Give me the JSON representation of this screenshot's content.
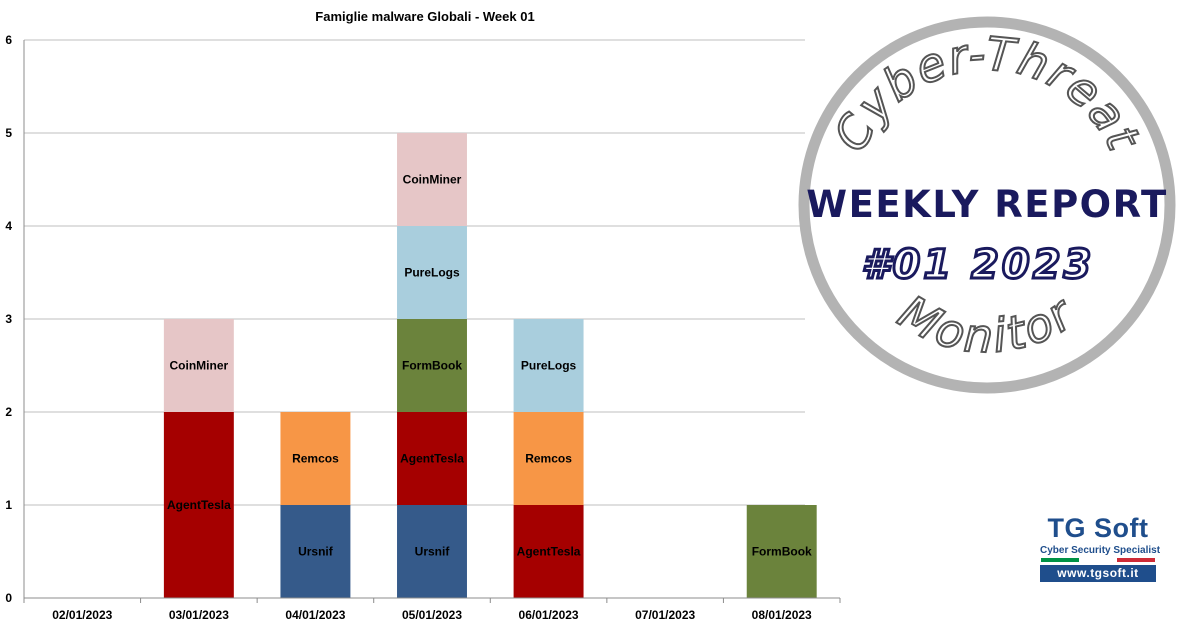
{
  "chart_data": {
    "type": "bar",
    "stacked": true,
    "title": "Famiglie malware Globali - Week 01",
    "xlabel": "",
    "ylabel": "",
    "ylim": [
      0,
      6
    ],
    "yticks": [
      0,
      1,
      2,
      3,
      4,
      5,
      6
    ],
    "grid": true,
    "legend": "none",
    "data_labels": "inside-segment",
    "categories": [
      "02/01/2023",
      "03/01/2023",
      "04/01/2023",
      "05/01/2023",
      "06/01/2023",
      "07/01/2023",
      "08/01/2023"
    ],
    "series": [
      {
        "name": "Ursnif",
        "color": "#355a8a",
        "values": [
          0,
          0,
          1,
          1,
          0,
          0,
          0
        ]
      },
      {
        "name": "AgentTesla",
        "color": "#a50000",
        "values": [
          0,
          2,
          0,
          1,
          1,
          0,
          0
        ]
      },
      {
        "name": "Remcos",
        "color": "#f79646",
        "values": [
          0,
          0,
          1,
          0,
          1,
          0,
          0
        ]
      },
      {
        "name": "FormBook",
        "color": "#6b833c",
        "values": [
          0,
          0,
          0,
          1,
          0,
          0,
          1
        ]
      },
      {
        "name": "PureLogs",
        "color": "#a9cedd",
        "values": [
          0,
          0,
          0,
          1,
          1,
          0,
          0
        ]
      },
      {
        "name": "CoinMiner",
        "color": "#e6c6c7",
        "values": [
          0,
          1,
          0,
          1,
          0,
          0,
          0
        ]
      }
    ]
  },
  "badge": {
    "top_text": "Cyber-Threat",
    "line1": "WEEKLY REPORT",
    "line2": "#01  2023",
    "bottom_text": "Monitor",
    "ring_color": "#b3b3b3",
    "text_color": "#1a1a5e"
  },
  "logo": {
    "title": "TG Soft",
    "subtitle": "Cyber Security Specialist",
    "url": "www.tgsoft.it",
    "brand_color": "#1f4e8c",
    "flag_colors": [
      "#009246",
      "#ffffff",
      "#ce2b37"
    ]
  }
}
